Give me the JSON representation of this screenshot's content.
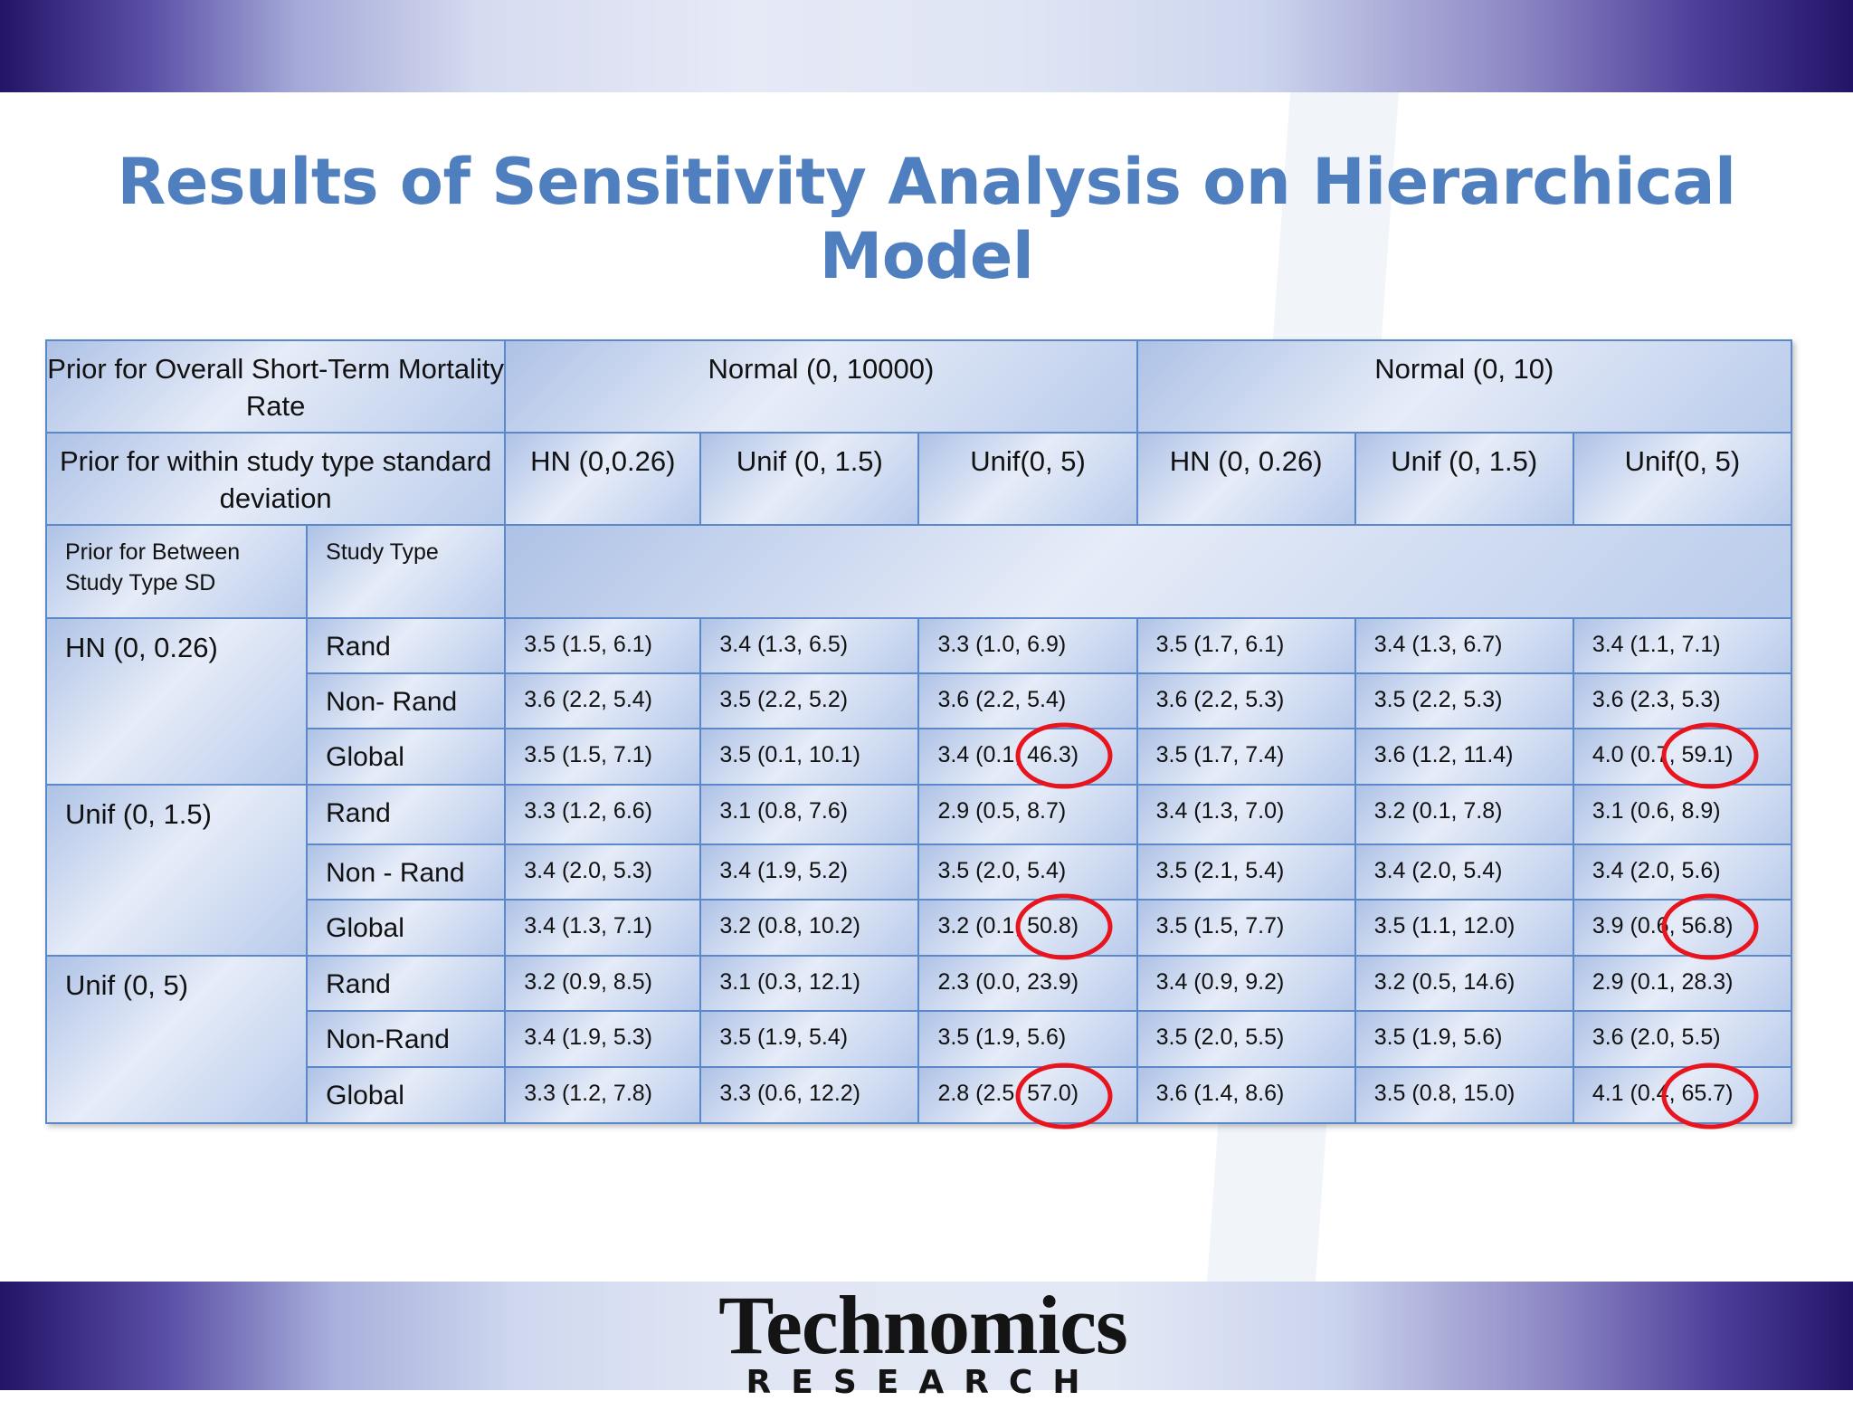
{
  "slide": {
    "title": "Results of Sensitivity Analysis on Hierarchical Model",
    "logo": {
      "name": "Technomics",
      "sub": "RESEARCH"
    }
  },
  "table": {
    "header1": {
      "label": "Prior for Overall Short-Term Mortality Rate",
      "group_a": "Normal (0, 10000)",
      "group_b": "Normal (0, 10)"
    },
    "header2": {
      "label": "Prior for within study type standard deviation",
      "cols": [
        "HN (0,0.26)",
        "Unif (0, 1.5)",
        "Unif(0, 5)",
        "HN (0, 0.26)",
        "Unif (0, 1.5)",
        "Unif(0, 5)"
      ]
    },
    "header3": {
      "between_label": "Prior for Between Study Type SD",
      "type_label": "Study Type"
    },
    "groups": [
      {
        "prior": "HN (0, 0.26)",
        "rows": [
          {
            "type": "Rand",
            "values": [
              "3.5 (1.5, 6.1)",
              "3.4 (1.3, 6.5)",
              "3.3 (1.0, 6.9)",
              "3.5 (1.7, 6.1)",
              "3.4 (1.3, 6.7)",
              "3.4 (1.1, 7.1)"
            ]
          },
          {
            "type": "Non- Rand",
            "values": [
              "3.6 (2.2, 5.4)",
              "3.5 (2.2, 5.2)",
              "3.6 (2.2, 5.4)",
              "3.6 (2.2, 5.3)",
              "3.5 (2.2, 5.3)",
              "3.6 (2.3, 5.3)"
            ]
          },
          {
            "type": "Global",
            "values": [
              "3.5 (1.5, 7.1)",
              "3.5 (0.1, 10.1)",
              "3.4 (0.1, 46.3)",
              "3.5 (1.7, 7.4)",
              "3.6 (1.2, 11.4)",
              "4.0 (0.7, 59.1)"
            ]
          }
        ]
      },
      {
        "prior": "Unif (0, 1.5)",
        "rows": [
          {
            "type": "Rand",
            "values": [
              "3.3 (1.2, 6.6)",
              "3.1 (0.8, 7.6)",
              "2.9 (0.5, 8.7)",
              "3.4 (1.3, 7.0)",
              "3.2 (0.1, 7.8)",
              "3.1 (0.6, 8.9)"
            ]
          },
          {
            "type": "Non - Rand",
            "values": [
              "3.4 (2.0, 5.3)",
              "3.4 (1.9, 5.2)",
              "3.5 (2.0, 5.4)",
              "3.5 (2.1, 5.4)",
              "3.4 (2.0, 5.4)",
              "3.4 (2.0, 5.6)"
            ]
          },
          {
            "type": "Global",
            "values": [
              "3.4 (1.3, 7.1)",
              "3.2 (0.8, 10.2)",
              "3.2 (0.1, 50.8)",
              "3.5 (1.5, 7.7)",
              "3.5 (1.1, 12.0)",
              "3.9 (0.6, 56.8)"
            ]
          }
        ]
      },
      {
        "prior": "Unif (0, 5)",
        "rows": [
          {
            "type": "Rand",
            "values": [
              "3.2 (0.9, 8.5)",
              "3.1 (0.3, 12.1)",
              "2.3 (0.0, 23.9)",
              "3.4 (0.9, 9.2)",
              "3.2 (0.5, 14.6)",
              "2.9 (0.1, 28.3)"
            ]
          },
          {
            "type": "Non-Rand",
            "values": [
              "3.4 (1.9, 5.3)",
              "3.5 (1.9, 5.4)",
              "3.5 (1.9, 5.6)",
              "3.5 (2.0, 5.5)",
              "3.5 (1.9, 5.6)",
              "3.6 (2.0, 5.5)"
            ]
          },
          {
            "type": "Global",
            "values": [
              "3.3 (1.2, 7.8)",
              "3.3 (0.6, 12.2)",
              "2.8 (2.5, 57.0)",
              "3.6 (1.4, 8.6)",
              "3.5 (0.8, 15.0)",
              "4.1 (0.4, 65.7)"
            ]
          }
        ]
      }
    ]
  },
  "colors": {
    "title": "#4f7fbf",
    "highlight": "#e8141e",
    "border": "#5b88c8"
  }
}
